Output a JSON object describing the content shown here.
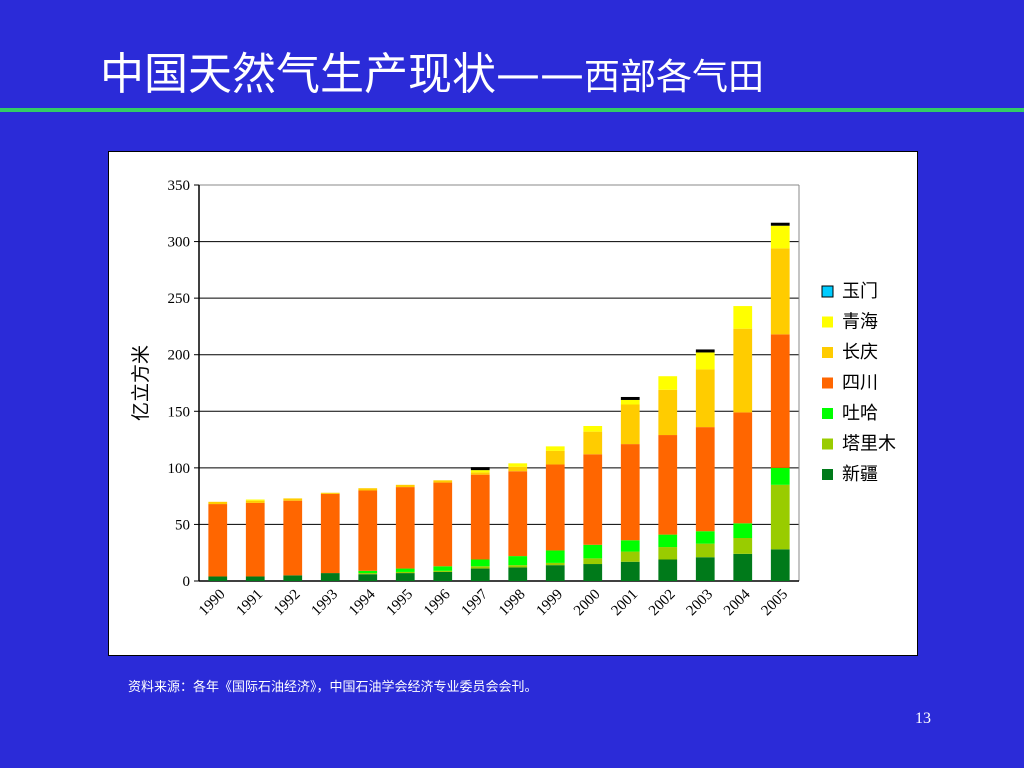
{
  "slide": {
    "title_main": "中国天然气生产现状——",
    "title_sub": "西部各气田",
    "source_note": "资料来源：各年《国际石油经济》，中国石油学会经济专业委员会会刊。",
    "page_number": "13"
  },
  "chart_data": {
    "type": "bar",
    "stacked": true,
    "title": "",
    "xlabel": "",
    "ylabel": "亿立方米",
    "ylim": [
      0,
      350
    ],
    "yticks": [
      0,
      50,
      100,
      150,
      200,
      250,
      300,
      350
    ],
    "grid": true,
    "legend_position": "right",
    "categories": [
      "1990",
      "1991",
      "1992",
      "1993",
      "1994",
      "1995",
      "1996",
      "1997",
      "1998",
      "1999",
      "2000",
      "2001",
      "2002",
      "2003",
      "2004",
      "2005"
    ],
    "series": [
      {
        "name": "新疆",
        "color": "#007a1a",
        "values": [
          4,
          4,
          5,
          7,
          6,
          7,
          8,
          11,
          12,
          14,
          15,
          17,
          19,
          21,
          24,
          28
        ]
      },
      {
        "name": "塔里木",
        "color": "#99cc00",
        "values": [
          0,
          0,
          0,
          0,
          1,
          1,
          1,
          2,
          2,
          2,
          5,
          9,
          11,
          12,
          14,
          57
        ]
      },
      {
        "name": "吐哈",
        "color": "#00ff00",
        "values": [
          0,
          0,
          0,
          0,
          2,
          3,
          4,
          6,
          8,
          11,
          12,
          10,
          11,
          11,
          13,
          15
        ]
      },
      {
        "name": "四川",
        "color": "#ff6600",
        "values": [
          64,
          65,
          66,
          70,
          71,
          72,
          74,
          75,
          75,
          76,
          80,
          85,
          88,
          92,
          98,
          118
        ]
      },
      {
        "name": "长庆",
        "color": "#ffcc00",
        "values": [
          2,
          2,
          2,
          1,
          2,
          2,
          2,
          2,
          4,
          12,
          20,
          35,
          40,
          51,
          74,
          76
        ]
      },
      {
        "name": "青海",
        "color": "#ffff00",
        "values": [
          0,
          1,
          0,
          0,
          0,
          0,
          0,
          2,
          3,
          4,
          5,
          4,
          12,
          15,
          20,
          20
        ]
      },
      {
        "name": "玉门",
        "color": "#00ccff",
        "values": [
          0,
          0,
          0,
          0,
          0,
          0,
          0,
          0,
          0,
          0,
          0,
          0,
          0,
          0,
          0,
          0
        ]
      }
    ],
    "top_markers": [
      "1997",
      "2001",
      "2003",
      "2005"
    ],
    "top_marker_color": "#000000"
  }
}
